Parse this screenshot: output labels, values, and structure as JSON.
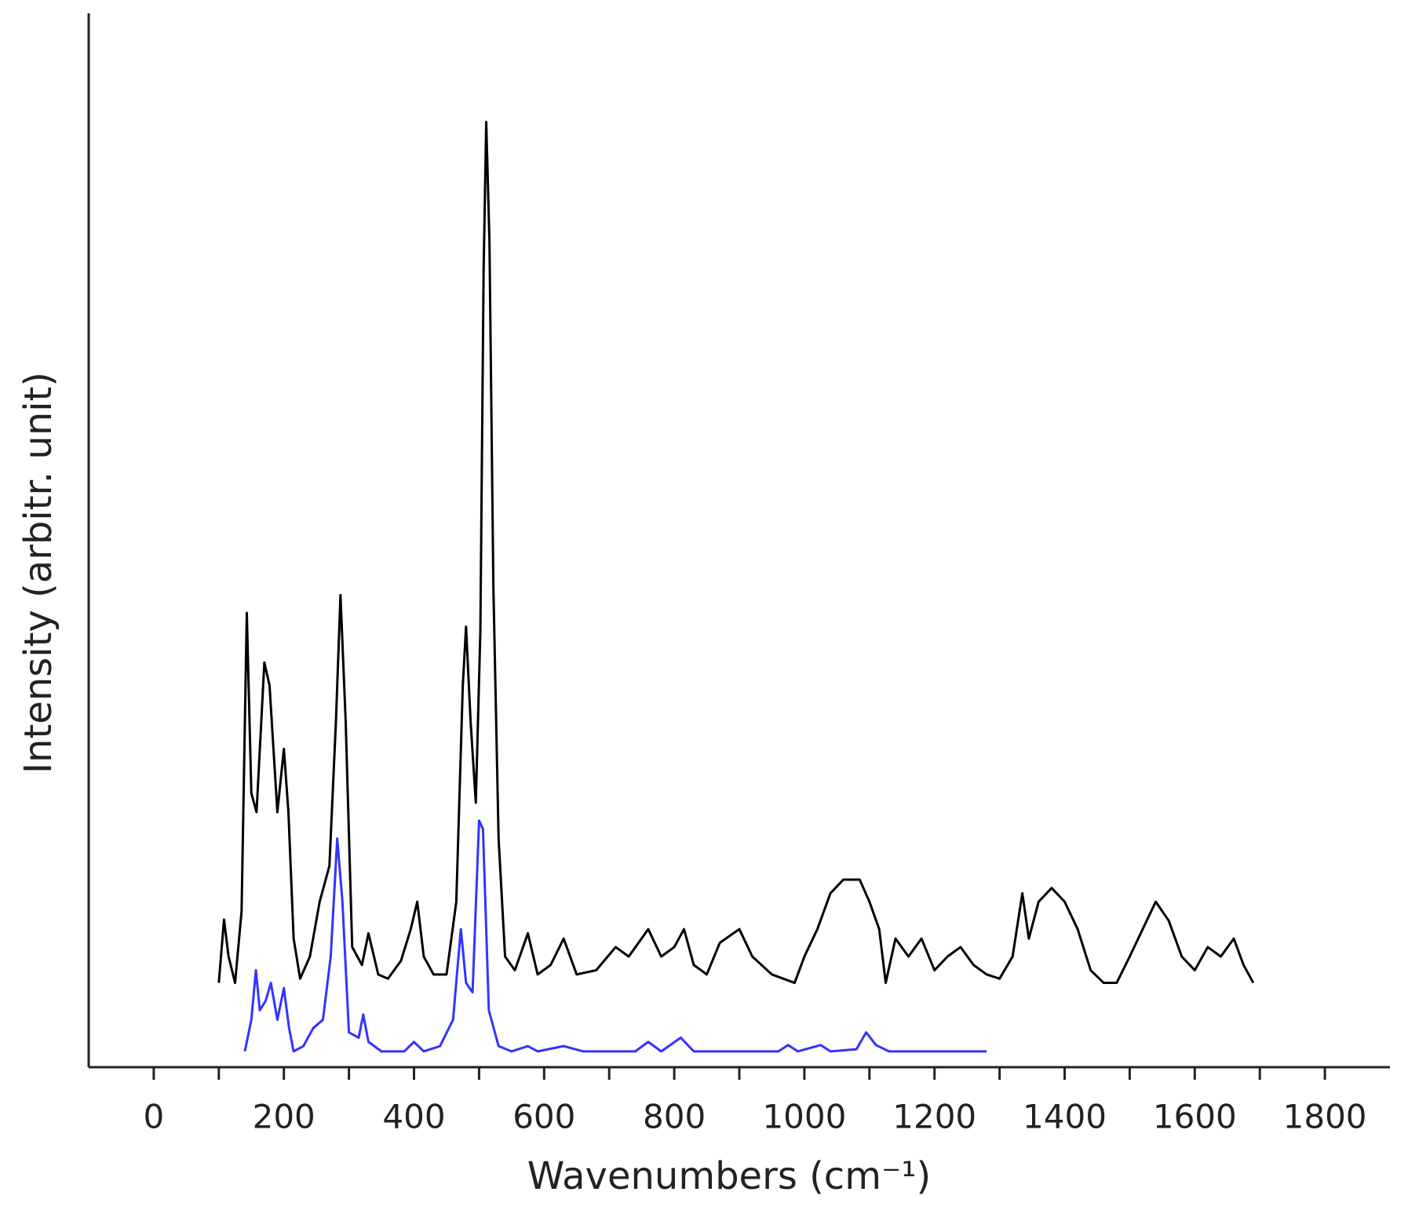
{
  "chart_data": {
    "type": "line",
    "x_label": "Wavenumbers (cm⁻¹)",
    "y_label": "Intensity (arbitr. unit)",
    "xlim": [
      -100,
      1900
    ],
    "xticks": [
      0,
      200,
      400,
      600,
      800,
      1000,
      1200,
      1400,
      1600,
      1800
    ],
    "xminor_ticks": [
      100,
      300,
      500,
      700,
      900,
      1100,
      1300,
      1500,
      1700
    ],
    "ylim": [
      0,
      100
    ],
    "series": [
      {
        "color": "#000000",
        "x": [
          100,
          108,
          115,
          125,
          135,
          143,
          150,
          158,
          170,
          178,
          190,
          200,
          207,
          215,
          225,
          240,
          255,
          270,
          280,
          287,
          295,
          305,
          320,
          330,
          345,
          360,
          380,
          395,
          405,
          415,
          430,
          450,
          465,
          475,
          480,
          487,
          495,
          502,
          507,
          511,
          516,
          522,
          530,
          540,
          555,
          575,
          590,
          610,
          630,
          650,
          680,
          710,
          730,
          760,
          780,
          800,
          815,
          830,
          850,
          870,
          900,
          920,
          950,
          985,
          1000,
          1020,
          1040,
          1060,
          1085,
          1100,
          1115,
          1125,
          1140,
          1160,
          1180,
          1200,
          1220,
          1240,
          1260,
          1280,
          1300,
          1320,
          1335,
          1345,
          1360,
          1380,
          1400,
          1420,
          1440,
          1460,
          1480,
          1500,
          1520,
          1540,
          1560,
          1580,
          1600,
          1620,
          1640,
          1660,
          1675,
          1690
        ],
        "values": [
          8.0,
          14.0,
          10.5,
          8.0,
          14.8,
          43.1,
          26,
          24.2,
          38.4,
          36.2,
          24.2,
          30.2,
          24.2,
          12.2,
          8.4,
          10.5,
          15.7,
          19.1,
          32.8,
          44.8,
          32.8,
          11.4,
          9.7,
          12.7,
          8.8,
          8.4,
          10.1,
          13.1,
          15.7,
          10.5,
          8.8,
          8.8,
          15.7,
          36.2,
          41.8,
          32.8,
          25.1,
          41.4,
          75.6,
          89.7,
          78.3,
          45.6,
          21.7,
          10.5,
          9.2,
          12.7,
          8.8,
          9.7,
          12.2,
          8.8,
          9.2,
          11.4,
          10.5,
          13.1,
          10.5,
          11.4,
          13.1,
          9.7,
          8.8,
          11.8,
          13.1,
          10.5,
          8.8,
          8.0,
          10.5,
          13.1,
          16.5,
          17.8,
          17.8,
          15.7,
          13.1,
          8.0,
          12.2,
          10.5,
          12.2,
          9.2,
          10.5,
          11.4,
          9.7,
          8.8,
          8.4,
          10.5,
          16.5,
          12.2,
          15.7,
          17.0,
          15.7,
          13.1,
          9.2,
          8.0,
          8.0,
          10.5,
          13.1,
          15.7,
          13.9,
          10.5,
          9.2,
          11.4,
          10.5,
          12.2,
          9.7,
          8.0
        ]
      },
      {
        "color": "#3333ff",
        "x": [
          140,
          150,
          157,
          163,
          172,
          180,
          190,
          200,
          208,
          215,
          230,
          245,
          260,
          272,
          282,
          290,
          300,
          315,
          322,
          330,
          350,
          385,
          400,
          415,
          440,
          460,
          472,
          480,
          490,
          500,
          506,
          515,
          530,
          550,
          575,
          590,
          630,
          660,
          740,
          760,
          780,
          810,
          830,
          960,
          975,
          990,
          1025,
          1040,
          1080,
          1095,
          1110,
          1130,
          1280
        ],
        "values": [
          1.5,
          4.5,
          9.2,
          5.4,
          6.3,
          8.0,
          4.5,
          7.5,
          3.7,
          1.5,
          2.0,
          3.7,
          4.5,
          10.5,
          21.7,
          15.7,
          3.3,
          2.8,
          5.0,
          2.4,
          1.5,
          1.5,
          2.4,
          1.5,
          2.0,
          4.5,
          13.1,
          8.0,
          7.1,
          23.4,
          22.6,
          5.4,
          2.0,
          1.5,
          2.0,
          1.5,
          2.0,
          1.5,
          1.5,
          2.4,
          1.5,
          2.8,
          1.5,
          1.5,
          2.1,
          1.5,
          2.1,
          1.5,
          1.7,
          3.3,
          2.1,
          1.5,
          1.5
        ]
      }
    ]
  }
}
